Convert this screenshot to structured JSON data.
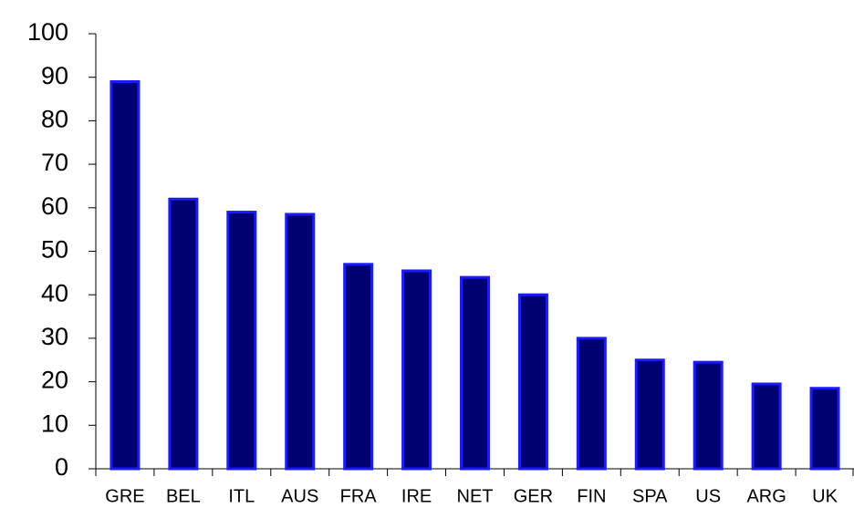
{
  "chart_data": {
    "type": "bar",
    "categories": [
      "GRE",
      "BEL",
      "ITL",
      "AUS",
      "FRA",
      "IRE",
      "NET",
      "GER",
      "FIN",
      "SPA",
      "US",
      "ARG",
      "UK"
    ],
    "values": [
      89,
      62,
      59,
      58.5,
      47,
      45.5,
      44,
      40,
      30,
      25,
      24.5,
      19.5,
      18.5
    ],
    "color": "#000070",
    "edge_color": "#1a1aff",
    "ylim": [
      0,
      100
    ],
    "yticks": [
      0,
      10,
      20,
      30,
      40,
      50,
      60,
      70,
      80,
      90,
      100
    ],
    "grid": false
  }
}
